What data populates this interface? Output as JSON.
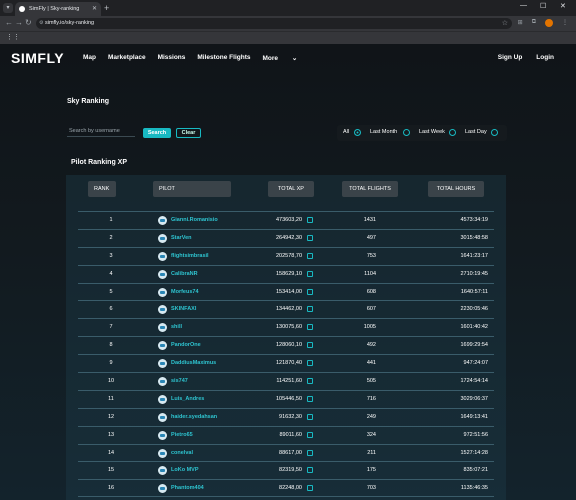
{
  "browser": {
    "tab_title": "SimFly | Sky-ranking",
    "url": "simfly.io/sky-ranking"
  },
  "nav": {
    "logo": "SIMFLY",
    "links": [
      "Map",
      "Marketplace",
      "Missions",
      "Milestone Flights",
      "More"
    ],
    "right": [
      "Sign Up",
      "Login"
    ]
  },
  "page_title": "Sky Ranking",
  "search": {
    "placeholder": "Search by username",
    "search_label": "Search",
    "clear_label": "Clear"
  },
  "filters": [
    {
      "label": "All",
      "selected": true
    },
    {
      "label": "Last Month",
      "selected": false
    },
    {
      "label": "Last Week",
      "selected": false
    },
    {
      "label": "Last Day",
      "selected": false
    }
  ],
  "section_title": "Pilot Ranking XP",
  "columns": [
    "RANK",
    "PILOT",
    "TOTAL XP",
    "TOTAL FLIGHTS",
    "TOTAL HOURS"
  ],
  "rows": [
    {
      "rank": "1",
      "pilot": "Gianni.Romanisio",
      "xp": "473603,20",
      "flights": "1431",
      "hours": "4573:34:19"
    },
    {
      "rank": "2",
      "pilot": "StarVen",
      "xp": "264942,30",
      "flights": "497",
      "hours": "3015:48:58"
    },
    {
      "rank": "3",
      "pilot": "flightsimbrasil",
      "xp": "202578,70",
      "flights": "753",
      "hours": "1641:23:17"
    },
    {
      "rank": "4",
      "pilot": "CalibraNR",
      "xp": "158629,10",
      "flights": "1104",
      "hours": "2710:19:45"
    },
    {
      "rank": "5",
      "pilot": "Morfeus74",
      "xp": "153414,00",
      "flights": "608",
      "hours": "1640:57:11"
    },
    {
      "rank": "6",
      "pilot": "SKINFAXI",
      "xp": "134462,00",
      "flights": "607",
      "hours": "2230:05:46"
    },
    {
      "rank": "7",
      "pilot": "shill",
      "xp": "130075,60",
      "flights": "1005",
      "hours": "1601:40:42"
    },
    {
      "rank": "8",
      "pilot": "PandorOne",
      "xp": "128060,10",
      "flights": "492",
      "hours": "1699:29:54"
    },
    {
      "rank": "9",
      "pilot": "DaddiusMaximus",
      "xp": "121870,40",
      "flights": "441",
      "hours": "947:24:07"
    },
    {
      "rank": "10",
      "pilot": "sis747",
      "xp": "114251,60",
      "flights": "505",
      "hours": "1724:54:14"
    },
    {
      "rank": "11",
      "pilot": "Luis_Andres",
      "xp": "105446,50",
      "flights": "716",
      "hours": "3029:06:37"
    },
    {
      "rank": "12",
      "pilot": "haider.syedahsan",
      "xp": "91632,30",
      "flights": "249",
      "hours": "1649:13:41"
    },
    {
      "rank": "13",
      "pilot": "Pietro65",
      "xp": "89011,60",
      "flights": "324",
      "hours": "972:51:56"
    },
    {
      "rank": "14",
      "pilot": "conelval",
      "xp": "88617,00",
      "flights": "211",
      "hours": "1527:14:28"
    },
    {
      "rank": "15",
      "pilot": "LoKo MVP",
      "xp": "82319,50",
      "flights": "175",
      "hours": "835:07:21"
    },
    {
      "rank": "16",
      "pilot": "Phantom404",
      "xp": "82248,00",
      "flights": "703",
      "hours": "1135:46:35"
    }
  ],
  "accent_color": "#18b9c2",
  "icons": {
    "external": "external-link-icon",
    "grid": "apps-grid-icon"
  }
}
